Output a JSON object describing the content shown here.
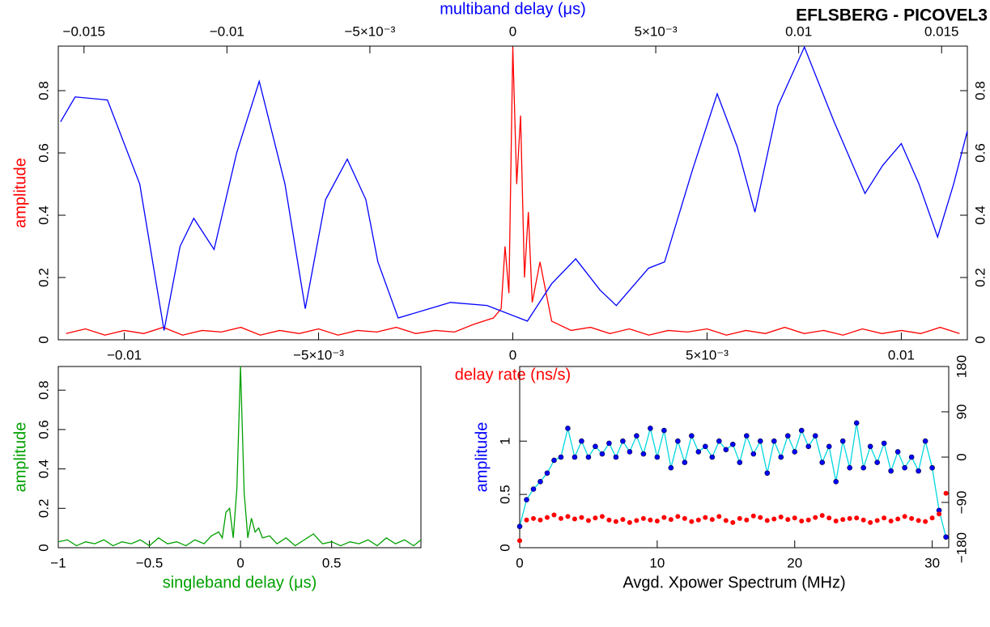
{
  "chart_data": [
    {
      "type": "line",
      "title": "EFLSBERG - PICOVEL3",
      "xlabel": "delay rate (ns/s)",
      "x2label": "multiband delay (μs)",
      "ylabel": "amplitude",
      "label_colors": {
        "xlabel": "#ff0000",
        "x2label": "#0000ff",
        "ylabel": "#ff0000"
      },
      "xlim": [
        -0.0117,
        0.0117
      ],
      "xticks": [
        {
          "value": -0.01,
          "label": "−0.01"
        },
        {
          "value": -0.005,
          "label": "−5×10⁻³"
        },
        0,
        {
          "value": 0.005,
          "label": "5×10⁻³"
        },
        0.01
      ],
      "x2lim": [
        -0.0159,
        0.0159
      ],
      "x2ticks": [
        {
          "value": -0.015,
          "label": "−0.015"
        },
        {
          "value": -0.01,
          "label": "−0.01"
        },
        {
          "value": -0.005,
          "label": "−5×10⁻³"
        },
        0,
        {
          "value": 0.005,
          "label": "5×10⁻³"
        },
        0.01,
        0.015
      ],
      "ylim": [
        0,
        0.943
      ],
      "yticks": [
        0,
        0.2,
        0.4,
        0.6,
        0.8
      ],
      "mirror_y": true,
      "series": [
        {
          "color": "#ff0000",
          "xaxis": "x",
          "x": [
            -0.0115,
            -0.011,
            -0.0105,
            -0.01,
            -0.0095,
            -0.009,
            -0.0085,
            -0.008,
            -0.0075,
            -0.007,
            -0.0065,
            -0.006,
            -0.0055,
            -0.005,
            -0.0045,
            -0.004,
            -0.0035,
            -0.003,
            -0.0025,
            -0.002,
            -0.0015,
            -0.001,
            -0.0005,
            -0.0003,
            -0.0002,
            -0.0001,
            0,
            0.0001,
            0.0002,
            0.0003,
            0.0004,
            0.0005,
            0.0007,
            0.001,
            0.0015,
            0.002,
            0.0025,
            0.003,
            0.0035,
            0.004,
            0.0045,
            0.005,
            0.0055,
            0.006,
            0.0065,
            0.007,
            0.0075,
            0.008,
            0.0085,
            0.009,
            0.0095,
            0.01,
            0.0105,
            0.011,
            0.0115
          ],
          "values": [
            0.02,
            0.035,
            0.015,
            0.03,
            0.02,
            0.04,
            0.015,
            0.03,
            0.025,
            0.04,
            0.015,
            0.03,
            0.02,
            0.035,
            0.015,
            0.03,
            0.025,
            0.04,
            0.02,
            0.03,
            0.025,
            0.05,
            0.07,
            0.1,
            0.3,
            0.15,
            0.94,
            0.5,
            0.72,
            0.2,
            0.41,
            0.12,
            0.25,
            0.06,
            0.03,
            0.04,
            0.02,
            0.035,
            0.015,
            0.03,
            0.025,
            0.035,
            0.015,
            0.03,
            0.02,
            0.04,
            0.02,
            0.03,
            0.015,
            0.035,
            0.02,
            0.03,
            0.02,
            0.04,
            0.02
          ]
        },
        {
          "color": "#0000ff",
          "xaxis": "x2",
          "x": [
            -0.01582,
            -0.01531,
            -0.01418,
            -0.01305,
            -0.0122,
            -0.01164,
            -0.01116,
            -0.01045,
            -0.00966,
            -0.00887,
            -0.00797,
            -0.00726,
            -0.00655,
            -0.00579,
            -0.00514,
            -0.00472,
            -0.00401,
            -0.00218,
            -0.0009,
            0.00051,
            0.00136,
            0.0022,
            0.00305,
            0.00362,
            0.00475,
            0.00531,
            0.0063,
            0.00715,
            0.00785,
            0.00847,
            0.00927,
            0.0102,
            0.01124,
            0.01232,
            0.01294,
            0.01359,
            0.01421,
            0.01486,
            0.01542,
            0.0159
          ],
          "values": [
            0.7,
            0.78,
            0.77,
            0.5,
            0.03,
            0.3,
            0.39,
            0.29,
            0.6,
            0.83,
            0.5,
            0.1,
            0.45,
            0.58,
            0.45,
            0.25,
            0.07,
            0.12,
            0.11,
            0.06,
            0.18,
            0.26,
            0.16,
            0.11,
            0.23,
            0.25,
            0.55,
            0.79,
            0.62,
            0.41,
            0.75,
            0.94,
            0.7,
            0.47,
            0.56,
            0.63,
            0.5,
            0.33,
            0.5,
            0.67
          ]
        }
      ]
    },
    {
      "type": "line",
      "xlabel": "singleband delay (μs)",
      "ylabel": "amplitude",
      "label_colors": {
        "xlabel": "#00a000",
        "ylabel": "#00a000"
      },
      "xlim": [
        -1,
        0.99
      ],
      "xticks": [
        {
          "value": -1,
          "label": "−1"
        },
        {
          "value": -0.5,
          "label": "−0.5"
        },
        0,
        0.5
      ],
      "ylim": [
        0,
        0.92
      ],
      "yticks": [
        0,
        0.2,
        0.4,
        0.6,
        0.8
      ],
      "series": [
        {
          "color": "#00a000",
          "x": [
            -1,
            -0.95,
            -0.9,
            -0.85,
            -0.8,
            -0.75,
            -0.7,
            -0.65,
            -0.6,
            -0.55,
            -0.5,
            -0.45,
            -0.4,
            -0.35,
            -0.3,
            -0.25,
            -0.2,
            -0.16,
            -0.12,
            -0.1,
            -0.08,
            -0.06,
            -0.04,
            -0.02,
            0,
            0.02,
            0.04,
            0.06,
            0.08,
            0.1,
            0.12,
            0.16,
            0.2,
            0.25,
            0.3,
            0.35,
            0.4,
            0.45,
            0.5,
            0.55,
            0.6,
            0.65,
            0.7,
            0.75,
            0.8,
            0.85,
            0.9,
            0.95,
            0.99
          ],
          "values": [
            0.03,
            0.04,
            0.01,
            0.03,
            0.02,
            0.04,
            0.01,
            0.03,
            0.02,
            0.04,
            0.01,
            0.05,
            0.02,
            0.03,
            0.01,
            0.04,
            0.02,
            0.06,
            0.08,
            0.05,
            0.18,
            0.2,
            0.05,
            0.3,
            0.92,
            0.28,
            0.05,
            0.15,
            0.08,
            0.1,
            0.05,
            0.06,
            0.02,
            0.05,
            0.01,
            0.04,
            0.07,
            0.02,
            0.03,
            0.01,
            0.03,
            0.02,
            0.04,
            0.01,
            0.05,
            0.02,
            0.04,
            0.01,
            0.04
          ]
        }
      ]
    },
    {
      "type": "line",
      "xlabel": "Avgd. Xpower Spectrum (MHz)",
      "ylabel": "amplitude",
      "label_colors": {
        "xlabel": "#000000",
        "ylabel": "#0000ff"
      },
      "xlim": [
        0,
        31.2
      ],
      "xticks": [
        0,
        10,
        20,
        30
      ],
      "ylim": [
        0,
        1.7
      ],
      "yticks": [
        0,
        0.5,
        1
      ],
      "y2lim": [
        -180,
        180
      ],
      "y2ticks": [
        {
          "value": -180,
          "label": "−180"
        },
        {
          "value": -90,
          "label": "−90"
        },
        0,
        90,
        180
      ],
      "series": [
        {
          "color": "#0000ff",
          "line_color": "#00d8e0",
          "markers": true,
          "line": true,
          "x": [
            0,
            0.5,
            1,
            1.5,
            2,
            2.5,
            3,
            3.5,
            4,
            4.5,
            5,
            5.5,
            6,
            6.5,
            7,
            7.5,
            8,
            8.5,
            9,
            9.5,
            10,
            10.5,
            11,
            11.5,
            12,
            12.5,
            13,
            13.5,
            14,
            14.5,
            15,
            15.5,
            16,
            16.5,
            17,
            17.5,
            18,
            18.5,
            19,
            19.5,
            20,
            20.5,
            21,
            21.5,
            22,
            22.5,
            23,
            23.5,
            24,
            24.5,
            25,
            25.5,
            26,
            26.5,
            27,
            27.5,
            28,
            28.5,
            29,
            29.5,
            30,
            30.5,
            31
          ],
          "values": [
            0.2,
            0.45,
            0.55,
            0.62,
            0.7,
            0.82,
            0.85,
            1.12,
            0.85,
            1.0,
            0.85,
            0.95,
            0.88,
            0.98,
            0.85,
            1.0,
            0.9,
            1.05,
            0.88,
            1.12,
            0.85,
            1.1,
            0.75,
            1.0,
            0.8,
            1.05,
            0.9,
            0.95,
            0.85,
            1.0,
            0.92,
            0.97,
            0.8,
            1.05,
            0.88,
            1.0,
            0.7,
            1.0,
            0.85,
            1.05,
            0.9,
            1.1,
            0.95,
            1.05,
            0.8,
            0.95,
            0.62,
            1.0,
            0.75,
            1.17,
            0.75,
            0.95,
            0.8,
            0.98,
            0.72,
            0.9,
            0.75,
            0.85,
            0.72,
            1.0,
            0.75,
            0.35,
            0.1
          ]
        },
        {
          "color": "#ff0000",
          "markers": true,
          "line": false,
          "axis": "y2",
          "x": [
            0,
            0.5,
            1,
            1.5,
            2,
            2.5,
            3,
            3.5,
            4,
            4.5,
            5,
            5.5,
            6,
            6.5,
            7,
            7.5,
            8,
            8.5,
            9,
            9.5,
            10,
            10.5,
            11,
            11.5,
            12,
            12.5,
            13,
            13.5,
            14,
            14.5,
            15,
            15.5,
            16,
            16.5,
            17,
            17.5,
            18,
            18.5,
            19,
            19.5,
            20,
            20.5,
            21,
            21.5,
            22,
            22.5,
            23,
            23.5,
            24,
            24.5,
            25,
            25.5,
            26,
            26.5,
            27,
            27.5,
            28,
            28.5,
            29,
            29.5,
            30,
            30.5,
            31
          ],
          "values": [
            -166,
            -125,
            -122,
            -125,
            -120,
            -115,
            -122,
            -118,
            -123,
            -120,
            -126,
            -121,
            -118,
            -125,
            -128,
            -124,
            -130,
            -126,
            -122,
            -125,
            -127,
            -120,
            -124,
            -118,
            -122,
            -128,
            -125,
            -120,
            -124,
            -118,
            -126,
            -130,
            -122,
            -125,
            -117,
            -120,
            -126,
            -123,
            -119,
            -124,
            -121,
            -127,
            -125,
            -120,
            -116,
            -121,
            -127,
            -124,
            -122,
            -121,
            -125,
            -130,
            -126,
            -121,
            -127,
            -123,
            -118,
            -122,
            -126,
            -128,
            -121,
            -113,
            -72
          ]
        }
      ]
    }
  ]
}
